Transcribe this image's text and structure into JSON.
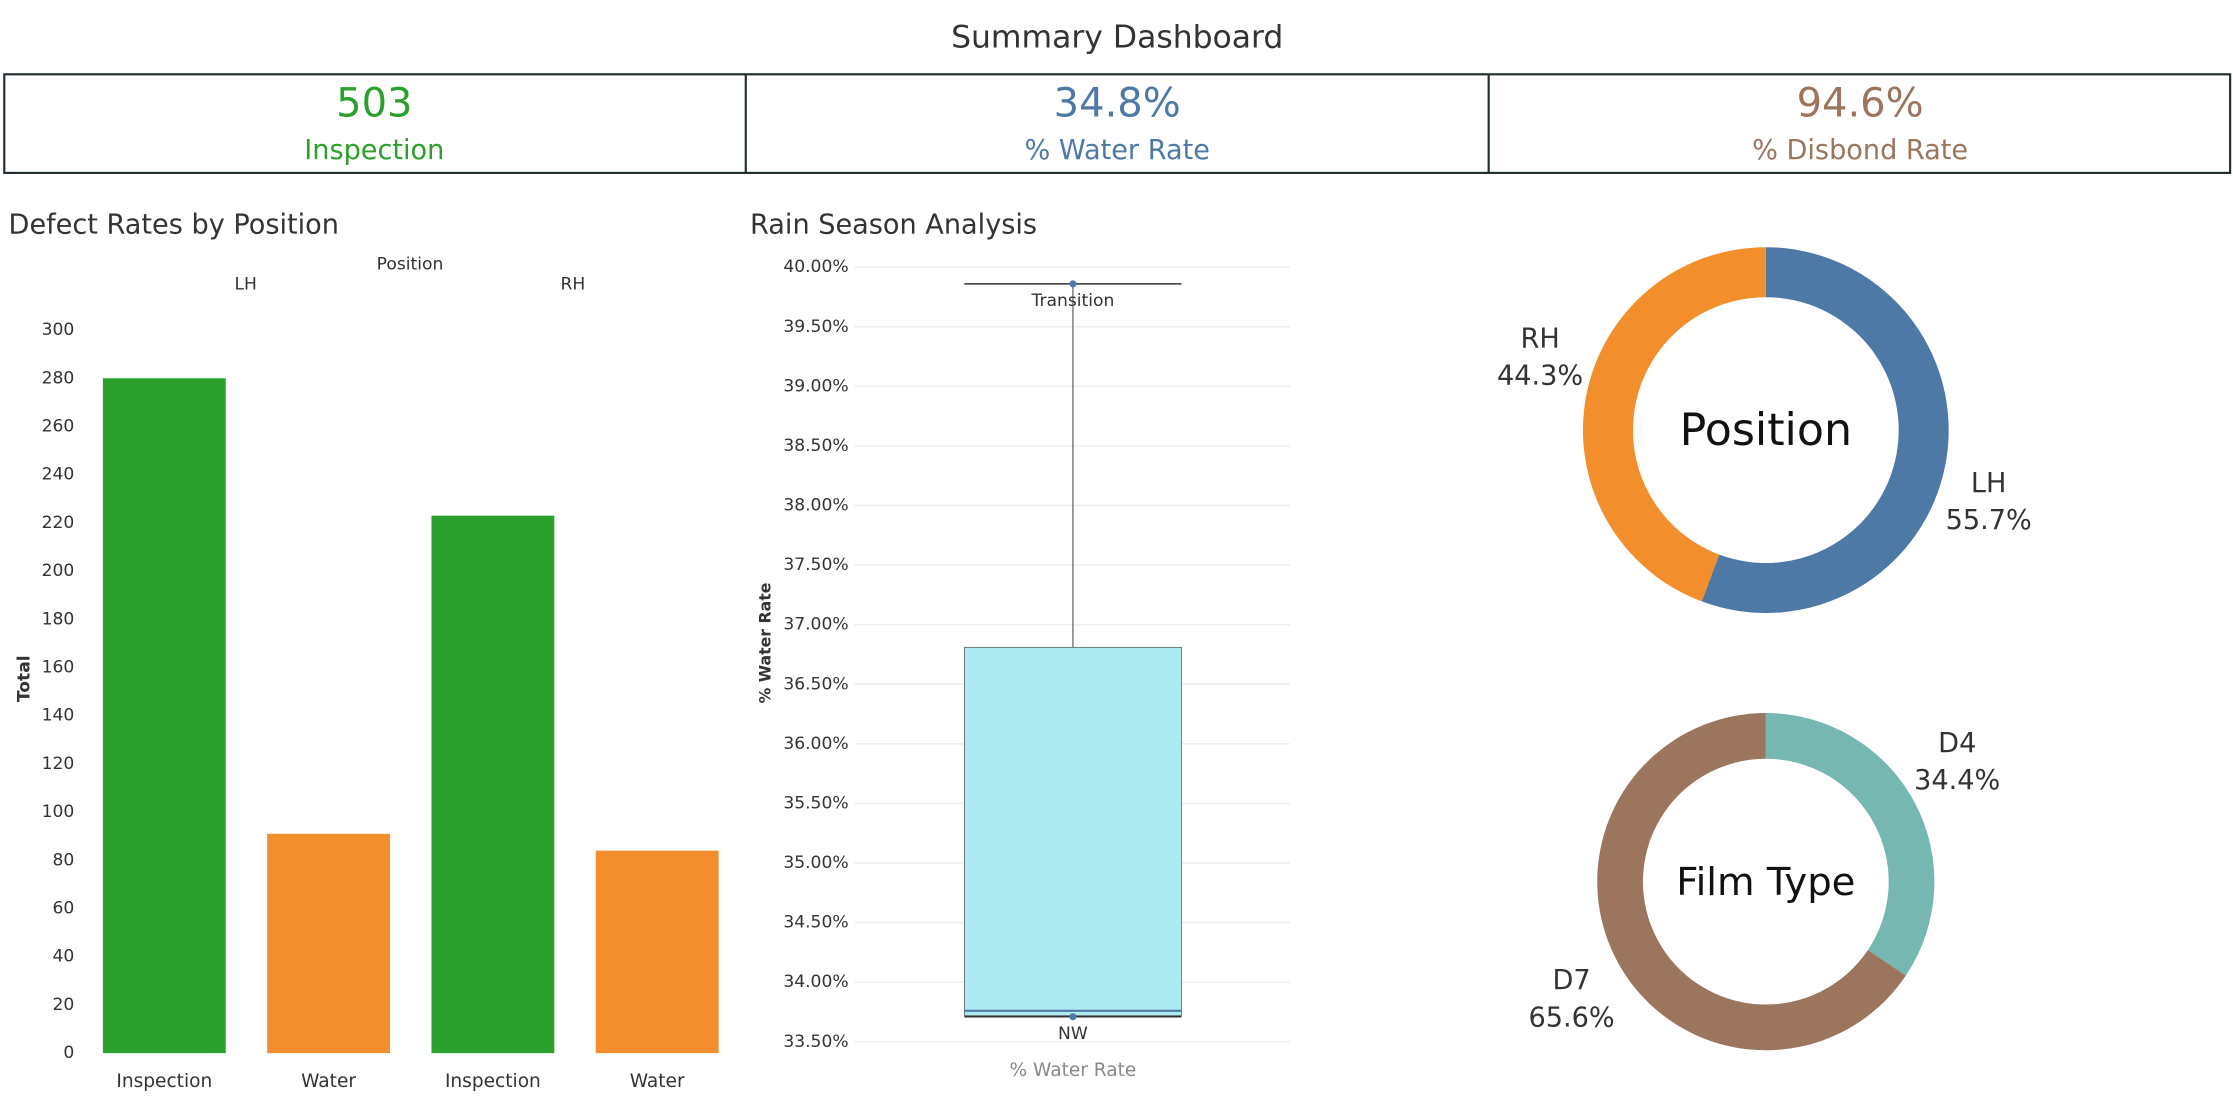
{
  "title": "Summary Dashboard",
  "kpis": [
    {
      "value": 503,
      "label": "Inspection",
      "color": "#2ca02c"
    },
    {
      "value": 34.8,
      "value_label": "34.8%",
      "label": "% Water Rate",
      "color": "#4e79a7"
    },
    {
      "value": 94.6,
      "value_label": "94.6%",
      "label": "% Disbond Rate",
      "color": "#9c755f"
    }
  ],
  "chart_data": [
    {
      "type": "bar",
      "title": "Defect Rates by Position",
      "group_title": "Position",
      "groups": [
        "LH",
        "RH"
      ],
      "categories": [
        "Inspection",
        "Water",
        "Inspection",
        "Water"
      ],
      "values": [
        280,
        91,
        223,
        84
      ],
      "colors": [
        "#2ca02c",
        "#f28e2b",
        "#2ca02c",
        "#f28e2b"
      ],
      "y_label": "Total",
      "ylim": [
        0,
        300
      ],
      "yticks": [
        0,
        20,
        40,
        60,
        80,
        100,
        120,
        140,
        160,
        180,
        200,
        220,
        240,
        260,
        280,
        300
      ]
    },
    {
      "type": "box",
      "title": "Rain Season Analysis",
      "y_label": "% Water Rate",
      "x_label": "% Water Rate",
      "color": "#aeeaf2",
      "min": 33.71,
      "q1": 33.72,
      "median": 33.76,
      "q3": 36.81,
      "max": 39.86,
      "points": [
        {
          "name": "Transition",
          "value": 39.86
        },
        {
          "name": "NW",
          "value": 33.71
        }
      ],
      "ylim": [
        33.4,
        40.08
      ],
      "grid": true,
      "yticks": [
        {
          "value": 33.5,
          "label": "33.50%"
        },
        {
          "value": 34,
          "label": "34.00%"
        },
        {
          "value": 34.5,
          "label": "34.50%"
        },
        {
          "value": 35,
          "label": "35.00%"
        },
        {
          "value": 35.5,
          "label": "35.50%"
        },
        {
          "value": 36,
          "label": "36.00%"
        },
        {
          "value": 36.5,
          "label": "36.50%"
        },
        {
          "value": 37,
          "label": "37.00%"
        },
        {
          "value": 37.5,
          "label": "37.50%"
        },
        {
          "value": 38,
          "label": "38.00%"
        },
        {
          "value": 38.5,
          "label": "38.50%"
        },
        {
          "value": 39,
          "label": "39.00%"
        },
        {
          "value": 39.5,
          "label": "39.50%"
        },
        {
          "value": 40,
          "label": "40.00%"
        }
      ]
    },
    {
      "type": "donut",
      "title": "Position",
      "categories": [
        "LH",
        "RH"
      ],
      "values": [
        55.7,
        44.3
      ],
      "value_labels": [
        "55.7%",
        "44.3%"
      ],
      "colors": [
        "#4e79a7",
        "#f28e2b"
      ]
    },
    {
      "type": "donut",
      "title": "Film Type",
      "categories": [
        "D4",
        "D7"
      ],
      "values": [
        34.4,
        65.6
      ],
      "value_labels": [
        "34.4%",
        "65.6%"
      ],
      "colors": [
        "#76b7b2",
        "#9c755f"
      ]
    }
  ]
}
